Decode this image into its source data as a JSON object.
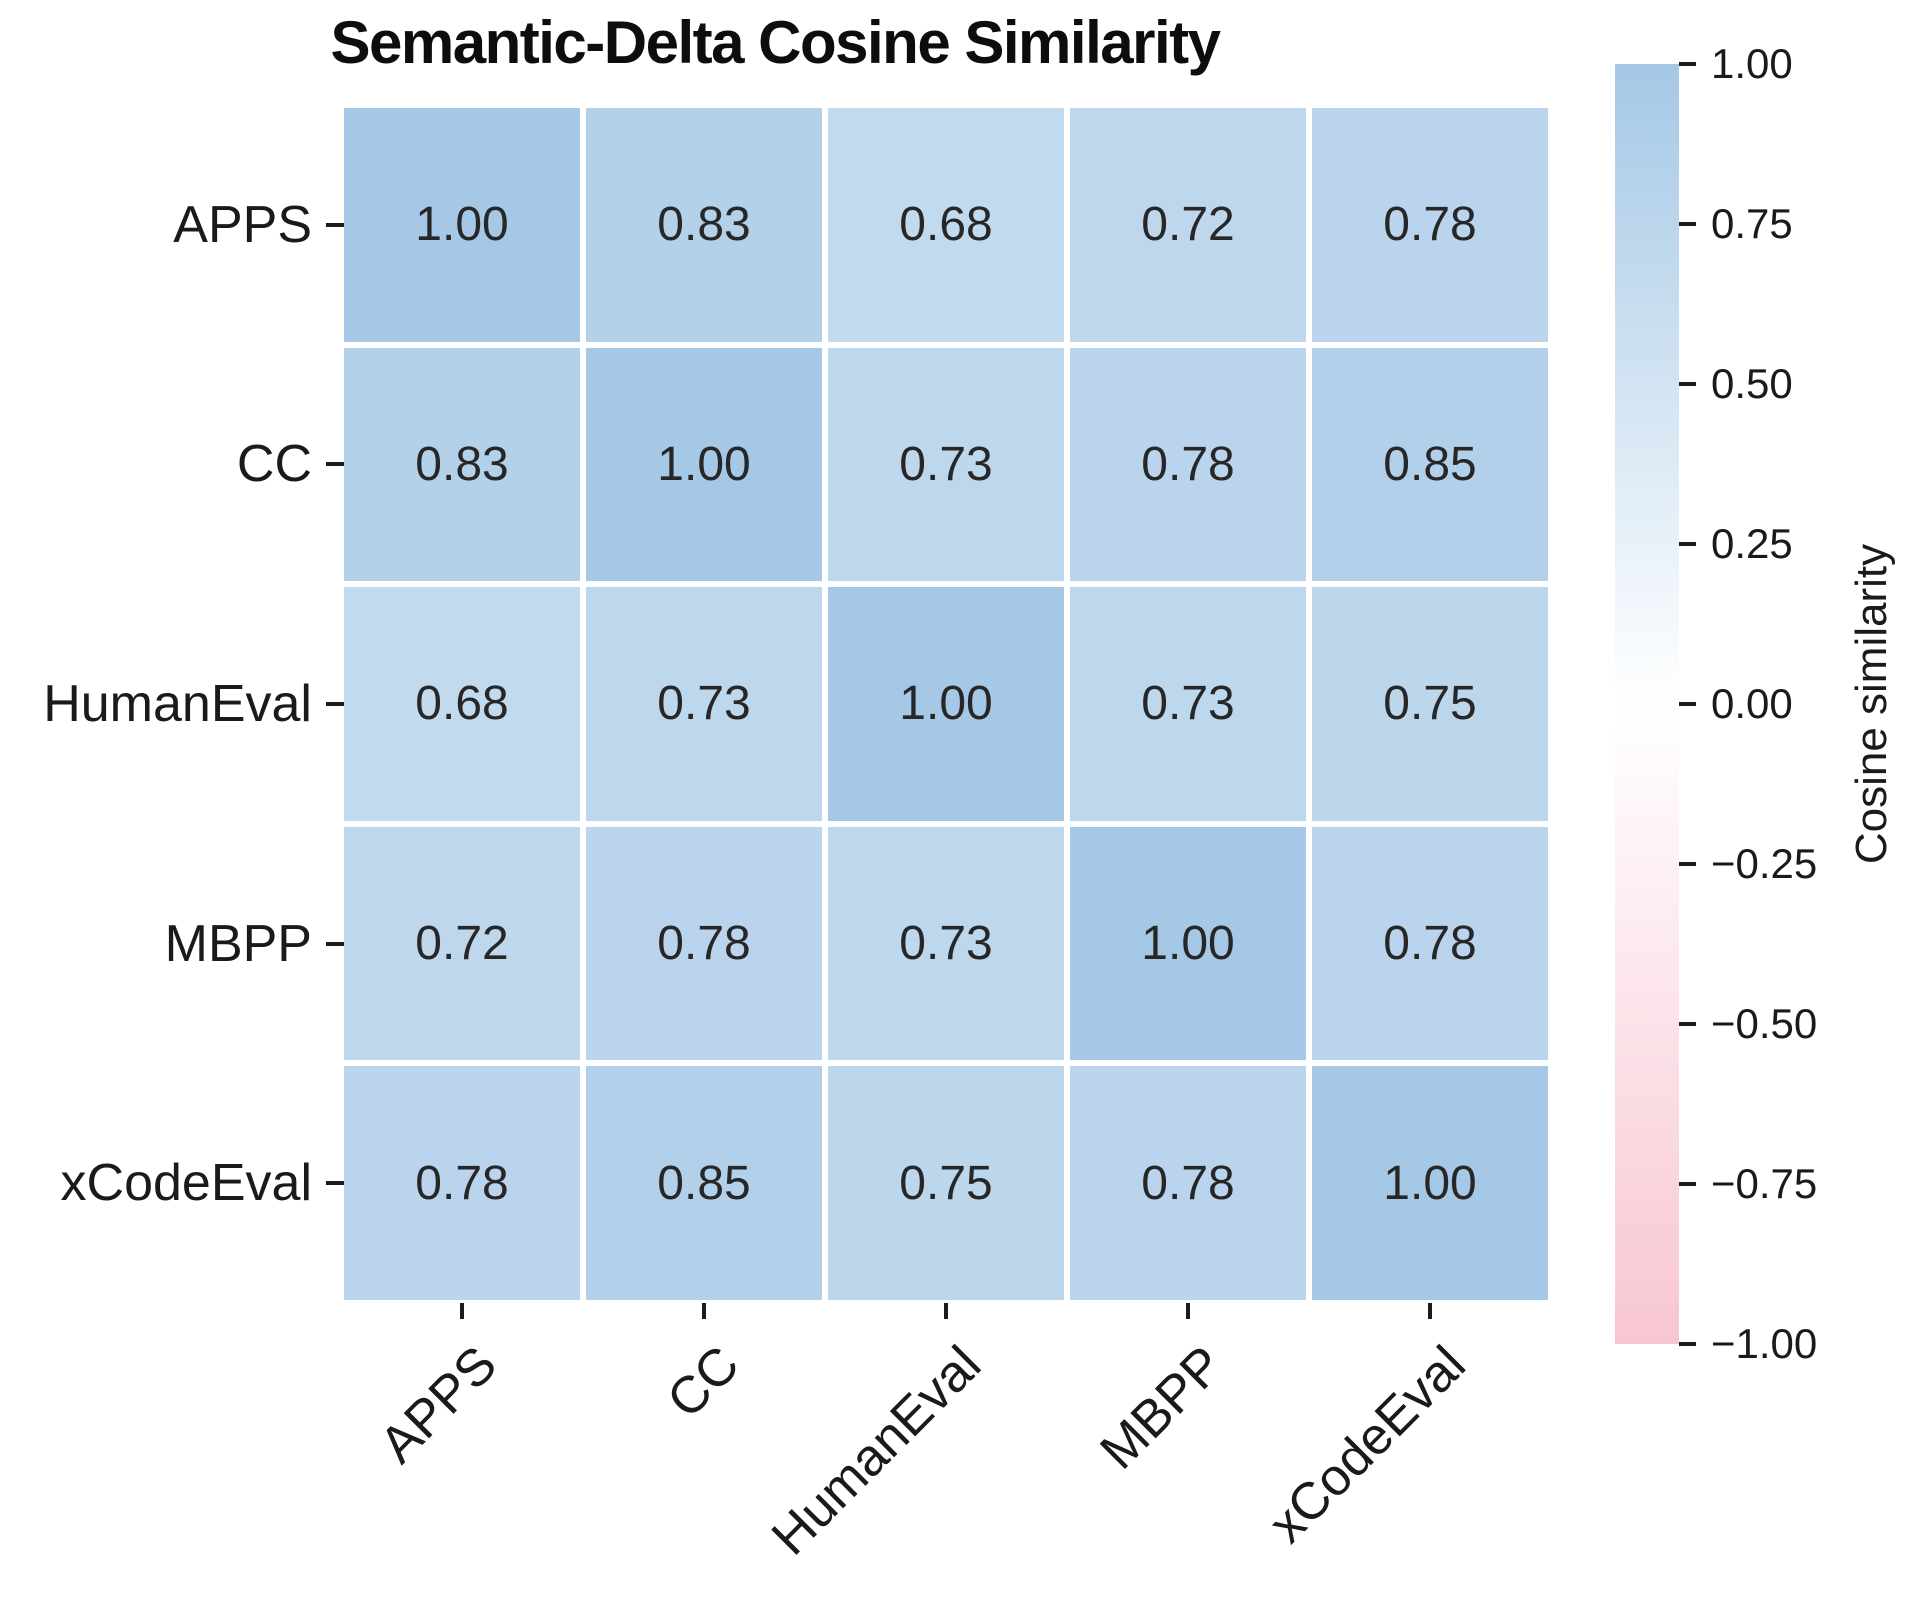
{
  "title": "Semantic-Delta Cosine Similarity",
  "chart_data": {
    "type": "heatmap",
    "title": "Semantic-Delta Cosine Similarity",
    "categories": [
      "APPS",
      "CC",
      "HumanEval",
      "MBPP",
      "xCodeEval"
    ],
    "matrix": [
      [
        1.0,
        0.83,
        0.68,
        0.72,
        0.78
      ],
      [
        0.83,
        1.0,
        0.73,
        0.78,
        0.85
      ],
      [
        0.68,
        0.73,
        1.0,
        0.73,
        0.75
      ],
      [
        0.72,
        0.78,
        0.73,
        1.0,
        0.78
      ],
      [
        0.78,
        0.85,
        0.75,
        0.78,
        1.0
      ]
    ],
    "value_decimals": 2,
    "grid": "white gridlines between cells",
    "colorbar": {
      "label": "Cosine similarity",
      "ticks": [
        "1.00",
        "0.75",
        "0.50",
        "0.25",
        "0.00",
        "−0.25",
        "−0.50",
        "−0.75",
        "−1.00"
      ],
      "tick_values": [
        1.0,
        0.75,
        0.5,
        0.25,
        0.0,
        -0.25,
        -0.5,
        -0.75,
        -1.0
      ],
      "vmin": -1.0,
      "vmax": 1.0,
      "position": "right"
    },
    "colors": {
      "positive_end": "#a5c8e6",
      "zero": "#ffffff",
      "negative_end": "#f8c6d2",
      "annotation_text": "#272727",
      "tick_color": "#1c1c1c"
    }
  }
}
